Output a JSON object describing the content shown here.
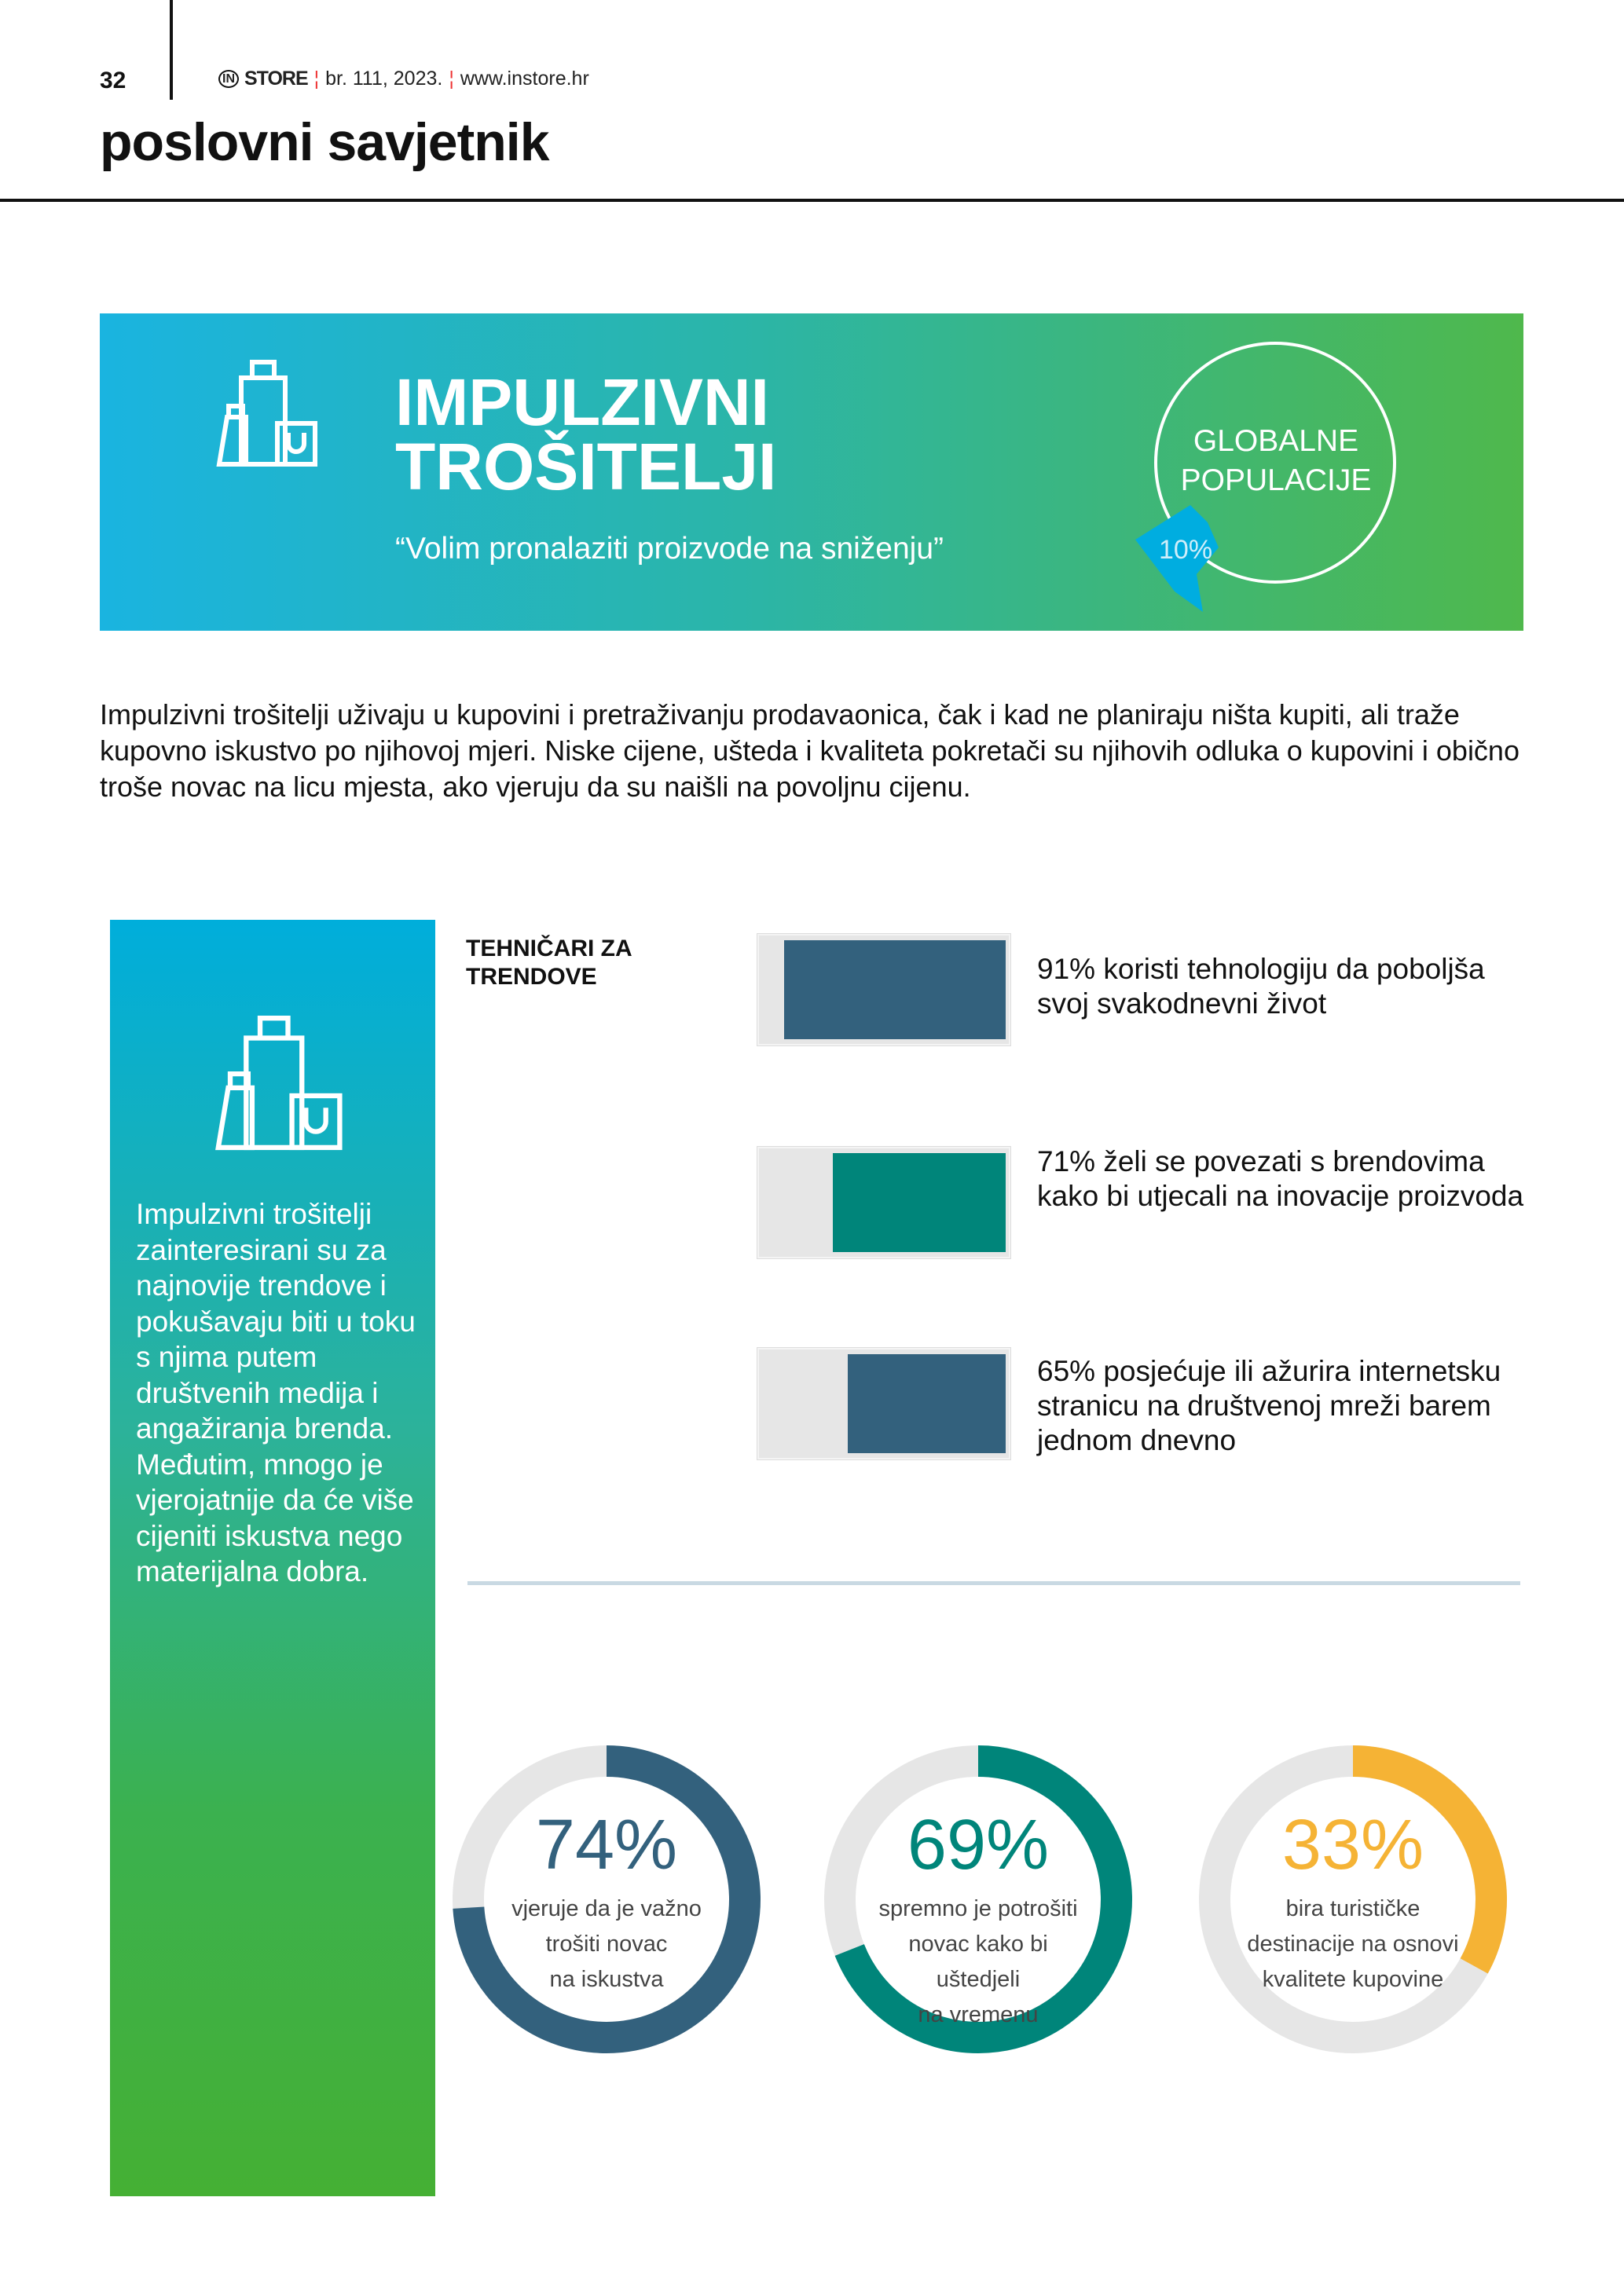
{
  "header": {
    "page_number": "32",
    "brand": "STORE",
    "brand_mark": "IN",
    "issue": "br. 111, 2023.",
    "website": "www.instore.hr",
    "section": "poslovni savjetnik"
  },
  "banner": {
    "icon": "shopping-bags-icon",
    "title_line1": "IMPULZIVNI",
    "title_line2": "TROŠITELJI",
    "quote": "“Volim pronalaziti proizvode na sniženju”",
    "circle_line1": "GLOBALNE",
    "circle_line2": "POPULACIJE",
    "share_label": "10%",
    "share_value": 10
  },
  "intro": "Impulzivni trošitelji uživaju u kupovini i pretraživanju prodavaonica, čak i kad ne planiraju ništa kupiti, ali traže kupovno iskustvo po njihovoj mjeri. Niske cijene, ušteda i kvaliteta pokretači su njihovih odluka o kupovini i obično troše novac na licu mjesta, ako vjeruju da su naišli na povoljnu cijenu.",
  "sidebar": {
    "icon": "shopping-bags-icon",
    "text": "Impulzivni trošitelji zainteresirani su za najnovije trendove i pokušavaju biti u toku s njima putem društvenih medija i angažiranja brenda. Međutim, mnogo je vjerojatnije da će više cijeniti iskustva nego materijalna dobra."
  },
  "trends": {
    "heading_line1": "TEHNIČARI ZA",
    "heading_line2": "TRENDOVE",
    "items": [
      {
        "value": 91,
        "color": "#33617d",
        "text": "91% koristi tehnologiju da poboljša svoj svakodnevni život"
      },
      {
        "value": 71,
        "color": "#00857a",
        "text": "71% želi se povezati s brendovima kako bi utjecali na inovacije proizvoda"
      },
      {
        "value": 65,
        "color": "#33617d",
        "text": "65% posjećuje ili ažurira internetsku stranicu na društvenoj mreži barem jednom dnevno"
      }
    ]
  },
  "donuts": [
    {
      "value": 74,
      "label": "74%",
      "color": "#33617d",
      "lines": [
        "vjeruje da je važno",
        "trošiti novac",
        "na iskustva"
      ]
    },
    {
      "value": 69,
      "label": "69%",
      "color": "#00857a",
      "lines": [
        "spremno je potrošiti",
        "novac kako bi",
        "uštedjeli",
        "na vremenu"
      ]
    },
    {
      "value": 33,
      "label": "33%",
      "color": "#f5b335",
      "lines": [
        "bira turističke",
        "destinacije na osnovi",
        "kvalitete kupovine"
      ]
    }
  ],
  "colors": {
    "track": "#e6e6e6",
    "banner_start": "#1ab4e0",
    "banner_end": "#4fb84c"
  }
}
